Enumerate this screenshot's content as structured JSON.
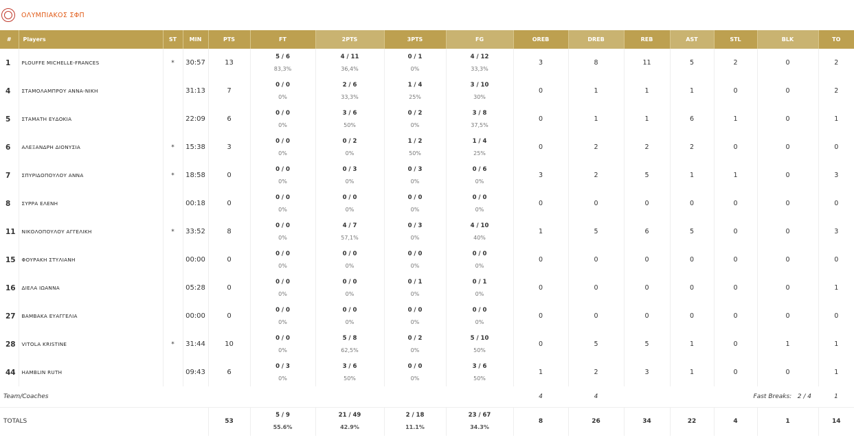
{
  "team": {
    "name": "ΟΛΥΜΠΙΑΚΟΣ ΣΦΠ",
    "logo_icon": "team-logo-icon",
    "accent_color": "#e05a16"
  },
  "table": {
    "header_color": "#bda050",
    "columns": [
      "#",
      "Players",
      "ST",
      "MIN",
      "PTS",
      "FT",
      "2PTS",
      "3PTS",
      "FG",
      "OREB",
      "DREB",
      "REB",
      "AST",
      "STL",
      "BLK",
      "TO"
    ],
    "players": [
      {
        "num": "1",
        "name": "PLOUFFE MICHELLE-FRANCES",
        "st": "*",
        "min": "30:57",
        "pts": "13",
        "ft": "5 / 6",
        "ft_pct": "83,3%",
        "p2": "4 / 11",
        "p2_pct": "36,4%",
        "p3": "0 / 1",
        "p3_pct": "0%",
        "fg": "4 / 12",
        "fg_pct": "33,3%",
        "oreb": "3",
        "dreb": "8",
        "reb": "11",
        "ast": "5",
        "stl": "2",
        "blk": "0",
        "to": "2"
      },
      {
        "num": "4",
        "name": "ΣΤΑΜΟΛΑΜΠΡΟΥ ΑΝΝΑ-ΝΙΚΗ",
        "st": "",
        "min": "31:13",
        "pts": "7",
        "ft": "0 / 0",
        "ft_pct": "0%",
        "p2": "2 / 6",
        "p2_pct": "33,3%",
        "p3": "1 / 4",
        "p3_pct": "25%",
        "fg": "3 / 10",
        "fg_pct": "30%",
        "oreb": "0",
        "dreb": "1",
        "reb": "1",
        "ast": "1",
        "stl": "0",
        "blk": "0",
        "to": "2"
      },
      {
        "num": "5",
        "name": "ΣΤΑΜΑΤΗ ΕΥΔΟΚΙΑ",
        "st": "",
        "min": "22:09",
        "pts": "6",
        "ft": "0 / 0",
        "ft_pct": "0%",
        "p2": "3 / 6",
        "p2_pct": "50%",
        "p3": "0 / 2",
        "p3_pct": "0%",
        "fg": "3 / 8",
        "fg_pct": "37,5%",
        "oreb": "0",
        "dreb": "1",
        "reb": "1",
        "ast": "6",
        "stl": "1",
        "blk": "0",
        "to": "1"
      },
      {
        "num": "6",
        "name": "ΑΛΕΞΑΝΔΡΗ ΔΙΟΝΥΣΙΑ",
        "st": "*",
        "min": "15:38",
        "pts": "3",
        "ft": "0 / 0",
        "ft_pct": "0%",
        "p2": "0 / 2",
        "p2_pct": "0%",
        "p3": "1 / 2",
        "p3_pct": "50%",
        "fg": "1 / 4",
        "fg_pct": "25%",
        "oreb": "0",
        "dreb": "2",
        "reb": "2",
        "ast": "2",
        "stl": "0",
        "blk": "0",
        "to": "0"
      },
      {
        "num": "7",
        "name": "ΣΠΥΡΙΔΟΠΟΥΛΟΥ ΑΝΝΑ",
        "st": "*",
        "min": "18:58",
        "pts": "0",
        "ft": "0 / 0",
        "ft_pct": "0%",
        "p2": "0 / 3",
        "p2_pct": "0%",
        "p3": "0 / 3",
        "p3_pct": "0%",
        "fg": "0 / 6",
        "fg_pct": "0%",
        "oreb": "3",
        "dreb": "2",
        "reb": "5",
        "ast": "1",
        "stl": "1",
        "blk": "0",
        "to": "3"
      },
      {
        "num": "8",
        "name": "ΣΥΡΡΑ ΕΛΕΝΗ",
        "st": "",
        "min": "00:18",
        "pts": "0",
        "ft": "0 / 0",
        "ft_pct": "0%",
        "p2": "0 / 0",
        "p2_pct": "0%",
        "p3": "0 / 0",
        "p3_pct": "0%",
        "fg": "0 / 0",
        "fg_pct": "0%",
        "oreb": "0",
        "dreb": "0",
        "reb": "0",
        "ast": "0",
        "stl": "0",
        "blk": "0",
        "to": "0"
      },
      {
        "num": "11",
        "name": "ΝΙΚΟΛΟΠΟΥΛΟΥ ΑΓΓΕΛΙΚΗ",
        "st": "*",
        "min": "33:52",
        "pts": "8",
        "ft": "0 / 0",
        "ft_pct": "0%",
        "p2": "4 / 7",
        "p2_pct": "57,1%",
        "p3": "0 / 3",
        "p3_pct": "0%",
        "fg": "4 / 10",
        "fg_pct": "40%",
        "oreb": "1",
        "dreb": "5",
        "reb": "6",
        "ast": "5",
        "stl": "0",
        "blk": "0",
        "to": "3"
      },
      {
        "num": "15",
        "name": "ΦΟΥΡΑΚΗ ΣΤΥΛΙΑΝΗ",
        "st": "",
        "min": "00:00",
        "pts": "0",
        "ft": "0 / 0",
        "ft_pct": "0%",
        "p2": "0 / 0",
        "p2_pct": "0%",
        "p3": "0 / 0",
        "p3_pct": "0%",
        "fg": "0 / 0",
        "fg_pct": "0%",
        "oreb": "0",
        "dreb": "0",
        "reb": "0",
        "ast": "0",
        "stl": "0",
        "blk": "0",
        "to": "0"
      },
      {
        "num": "16",
        "name": "ΔΙΕΛΑ ΙΩΑΝΝΑ",
        "st": "",
        "min": "05:28",
        "pts": "0",
        "ft": "0 / 0",
        "ft_pct": "0%",
        "p2": "0 / 0",
        "p2_pct": "0%",
        "p3": "0 / 1",
        "p3_pct": "0%",
        "fg": "0 / 1",
        "fg_pct": "0%",
        "oreb": "0",
        "dreb": "0",
        "reb": "0",
        "ast": "0",
        "stl": "0",
        "blk": "0",
        "to": "1"
      },
      {
        "num": "27",
        "name": "ΒΑΜΒΑΚΑ ΕΥΑΓΓΕΛΙΑ",
        "st": "",
        "min": "00:00",
        "pts": "0",
        "ft": "0 / 0",
        "ft_pct": "0%",
        "p2": "0 / 0",
        "p2_pct": "0%",
        "p3": "0 / 0",
        "p3_pct": "0%",
        "fg": "0 / 0",
        "fg_pct": "0%",
        "oreb": "0",
        "dreb": "0",
        "reb": "0",
        "ast": "0",
        "stl": "0",
        "blk": "0",
        "to": "0"
      },
      {
        "num": "28",
        "name": "VITOLA KRISTINE",
        "st": "*",
        "min": "31:44",
        "pts": "10",
        "ft": "0 / 0",
        "ft_pct": "0%",
        "p2": "5 / 8",
        "p2_pct": "62,5%",
        "p3": "0 / 2",
        "p3_pct": "0%",
        "fg": "5 / 10",
        "fg_pct": "50%",
        "oreb": "0",
        "dreb": "5",
        "reb": "5",
        "ast": "1",
        "stl": "0",
        "blk": "1",
        "to": "1"
      },
      {
        "num": "44",
        "name": "HAMBLIN RUTH",
        "st": "",
        "min": "09:43",
        "pts": "6",
        "ft": "0 / 3",
        "ft_pct": "0%",
        "p2": "3 / 6",
        "p2_pct": "50%",
        "p3": "0 / 0",
        "p3_pct": "0%",
        "fg": "3 / 6",
        "fg_pct": "50%",
        "oreb": "1",
        "dreb": "2",
        "reb": "3",
        "ast": "1",
        "stl": "0",
        "blk": "0",
        "to": "1"
      }
    ],
    "coaches": {
      "label": "Team/Coaches",
      "oreb": "4",
      "dreb": "4",
      "fast_breaks_label": "Fast Breaks:",
      "fast_breaks": "2 / 4",
      "to": "1"
    },
    "totals": {
      "label": "TOTALS",
      "pts": "53",
      "ft": "5 / 9",
      "ft_pct": "55.6%",
      "p2": "21 / 49",
      "p2_pct": "42.9%",
      "p3": "2 / 18",
      "p3_pct": "11.1%",
      "fg": "23 / 67",
      "fg_pct": "34.3%",
      "oreb": "8",
      "dreb": "26",
      "reb": "34",
      "ast": "22",
      "stl": "4",
      "blk": "1",
      "to": "14"
    }
  }
}
